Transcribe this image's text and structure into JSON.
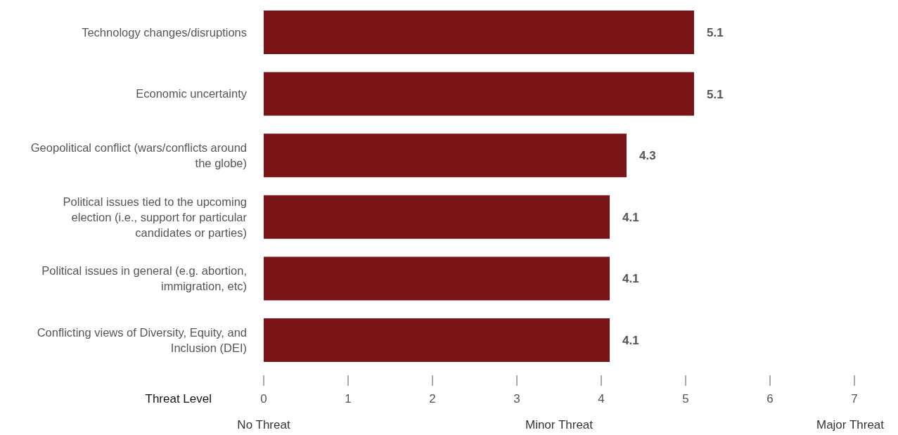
{
  "chart_data": {
    "type": "bar",
    "orientation": "horizontal",
    "categories": [
      "Technology changes/disruptions",
      "Economic uncertainty",
      "Geopolitical conflict (wars/conflicts around the globe)",
      "Political issues tied to the upcoming election (i.e., support for particular candidates or parties)",
      "Political issues in general (e.g. abortion, immigration, etc)",
      "Conflicting views of Diversity, Equity, and Inclusion (DEI)"
    ],
    "values": [
      5.1,
      5.1,
      4.3,
      4.1,
      4.1,
      4.1
    ],
    "color": "#7b1416",
    "data_labels": true,
    "xlabel": "Threat Level",
    "xlim": [
      0,
      7
    ],
    "xticks": [
      0,
      1,
      2,
      3,
      4,
      5,
      6,
      7
    ],
    "grid": false,
    "annotations": [
      "No Threat",
      "Minor Threat",
      "Major Threat"
    ]
  }
}
